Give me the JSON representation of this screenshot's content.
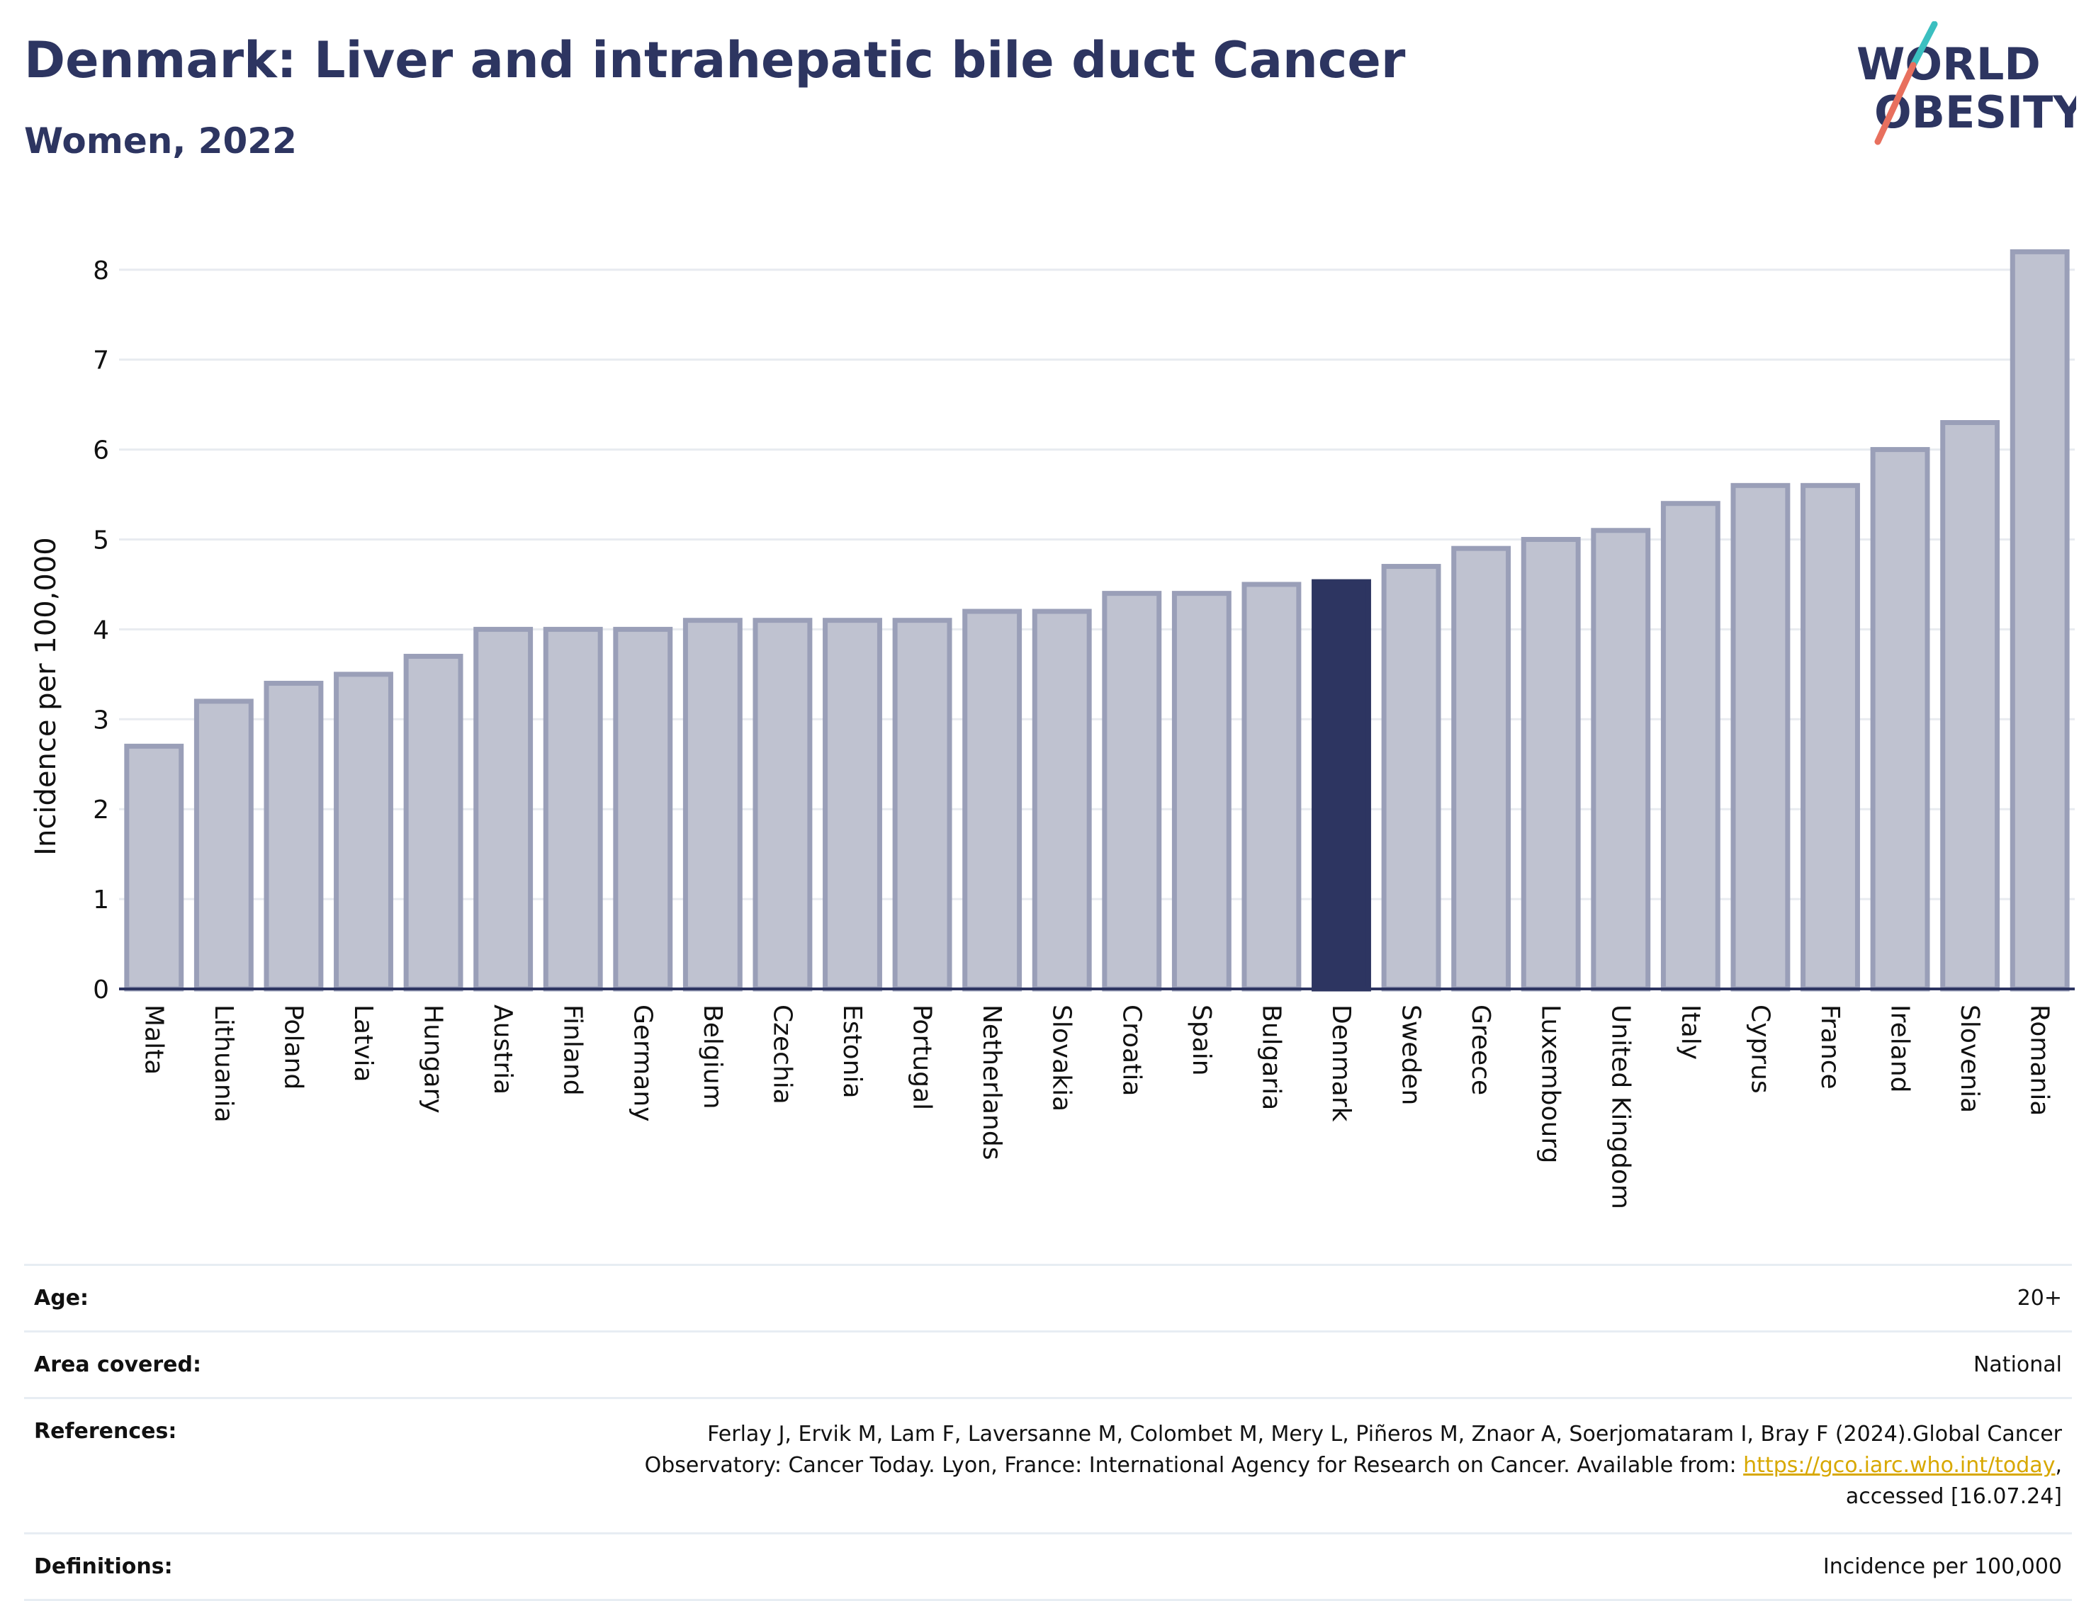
{
  "header": {
    "title": "Denmark: Liver and intrahepatic bile duct Cancer",
    "subtitle": "Women, 2022"
  },
  "logo": {
    "line1": "WORLD",
    "line2": "OBESITY",
    "colors": {
      "text": "#2d3561",
      "slash_top": "#3bbfc0",
      "slash_bottom": "#e8705e"
    }
  },
  "chart_data": {
    "type": "bar",
    "categories": [
      "Malta",
      "Lithuania",
      "Poland",
      "Latvia",
      "Hungary",
      "Austria",
      "Finland",
      "Germany",
      "Belgium",
      "Czechia",
      "Estonia",
      "Portugal",
      "Netherlands",
      "Slovakia",
      "Croatia",
      "Spain",
      "Bulgaria",
      "Denmark",
      "Sweden",
      "Greece",
      "Luxembourg",
      "United Kingdom",
      "Italy",
      "Cyprus",
      "France",
      "Ireland",
      "Slovenia",
      "Romania"
    ],
    "values": [
      2.7,
      3.2,
      3.4,
      3.5,
      3.7,
      4.0,
      4.0,
      4.0,
      4.1,
      4.1,
      4.1,
      4.1,
      4.2,
      4.2,
      4.4,
      4.4,
      4.5,
      4.53,
      4.7,
      4.9,
      5.0,
      5.1,
      5.4,
      5.6,
      5.6,
      6.0,
      6.3,
      8.2
    ],
    "highlight": "Denmark",
    "ylabel": "Incidence per 100,000",
    "ylim": [
      0,
      8.4
    ],
    "yticks": [
      0,
      1,
      2,
      3,
      4,
      5,
      6,
      7,
      8
    ],
    "grid": true,
    "colors": {
      "bar": "#bfc2d0",
      "bar_edge": "#9a9fb8",
      "highlight": "#2d3561",
      "grid": "#e8ebf0",
      "axis": "#2d3561"
    }
  },
  "meta": {
    "age_label": "Age:",
    "age_value": "20+",
    "area_label": "Area covered:",
    "area_value": "National",
    "references_label": "References:",
    "references_line1": "Ferlay J, Ervik M, Lam F, Laversanne M, Colombet M, Mery L, Piñeros M, Znaor A, Soerjomataram I, Bray F (2024).Global Cancer",
    "references_line2": "Observatory: Cancer Today. Lyon, France: International Agency for Research on Cancer. Available from: ",
    "references_link": "https://gco.iarc.who.int/today",
    "references_line2_end": ",",
    "references_line3": "accessed [16.07.24]",
    "definitions_label": "Definitions:",
    "definitions_value": "Incidence per 100,000"
  }
}
